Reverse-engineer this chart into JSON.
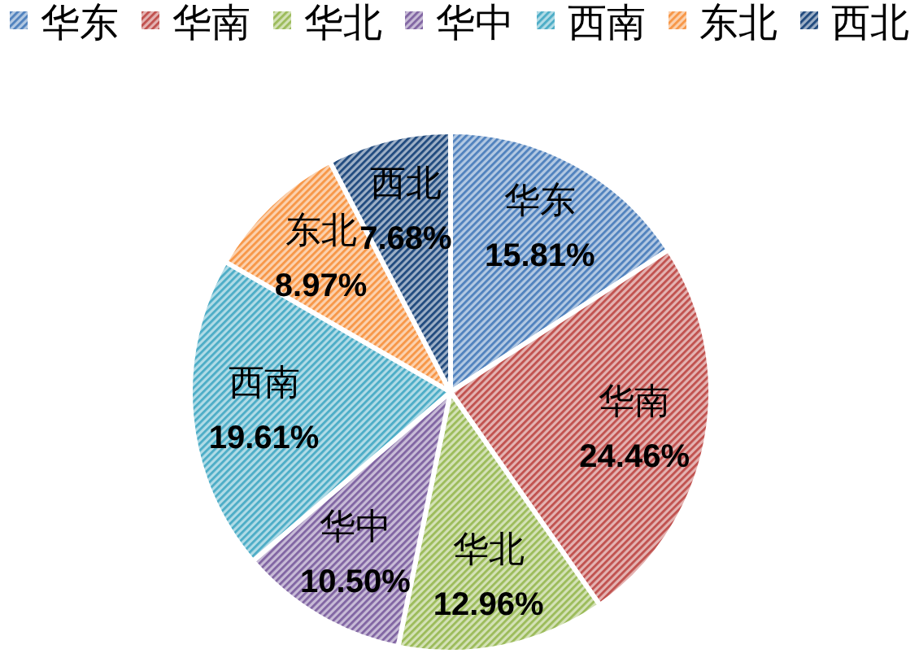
{
  "chart_data": {
    "type": "pie",
    "categories": [
      "华东",
      "华南",
      "华北",
      "华中",
      "西南",
      "东北",
      "西北"
    ],
    "values": [
      15.81,
      24.46,
      12.96,
      10.5,
      19.61,
      8.97,
      7.68
    ],
    "value_labels": [
      "15.81%",
      "24.46%",
      "12.96%",
      "10.50%",
      "19.61%",
      "8.97%",
      "7.68%"
    ],
    "colors": [
      "#4f81bd",
      "#c0504d",
      "#9bbb59",
      "#8064a2",
      "#4bacc6",
      "#f79646",
      "#1f497d"
    ],
    "legend": "top"
  }
}
